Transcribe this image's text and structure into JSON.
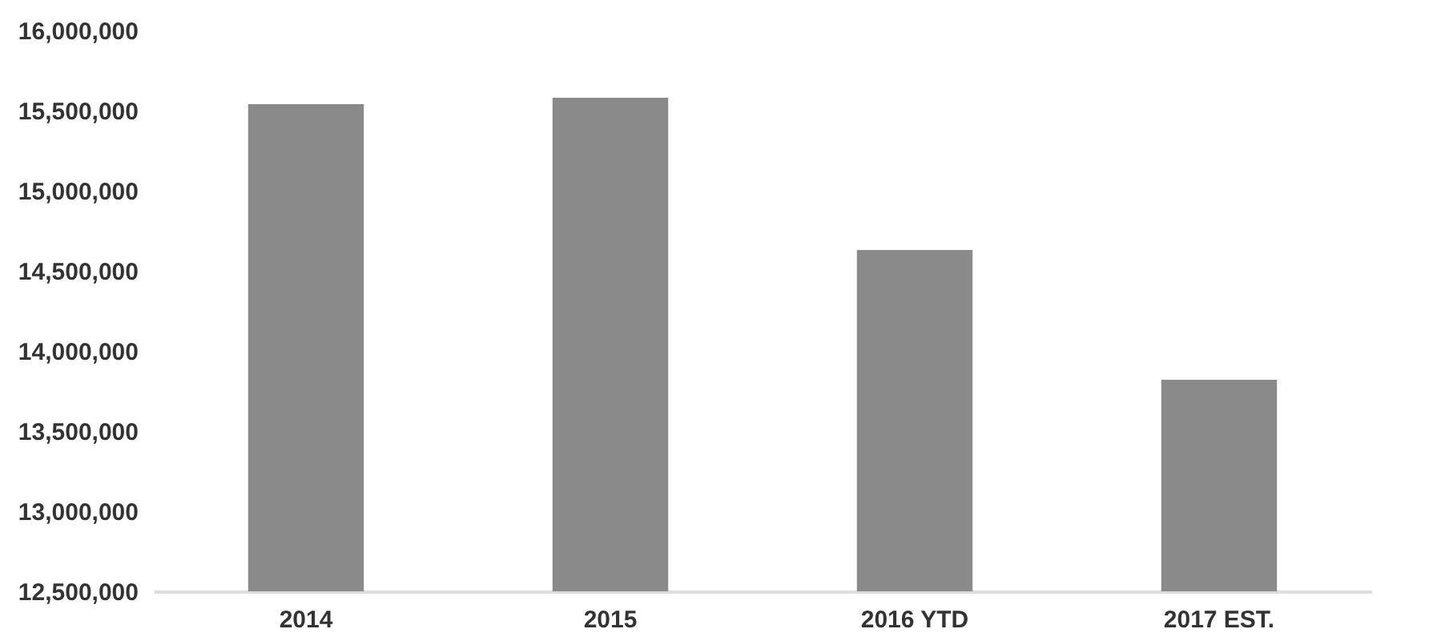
{
  "chart_data": {
    "type": "bar",
    "categories": [
      "2014",
      "2015",
      "2016 YTD",
      "2017 EST."
    ],
    "values": [
      15540000,
      15580000,
      14630000,
      13820000
    ],
    "color": "#8a8a8a",
    "ylim": [
      12500000,
      16000000
    ],
    "yticks": [
      {
        "value": 12500000,
        "label": "12,500,000"
      },
      {
        "value": 13000000,
        "label": "13,000,000"
      },
      {
        "value": 13500000,
        "label": "13,500,000"
      },
      {
        "value": 14000000,
        "label": "14,000,000"
      },
      {
        "value": 14500000,
        "label": "14,500,000"
      },
      {
        "value": 15000000,
        "label": "15,000,000"
      },
      {
        "value": 15500000,
        "label": "15,500,000"
      },
      {
        "value": 16000000,
        "label": "16,000,000"
      }
    ],
    "grid": false
  }
}
